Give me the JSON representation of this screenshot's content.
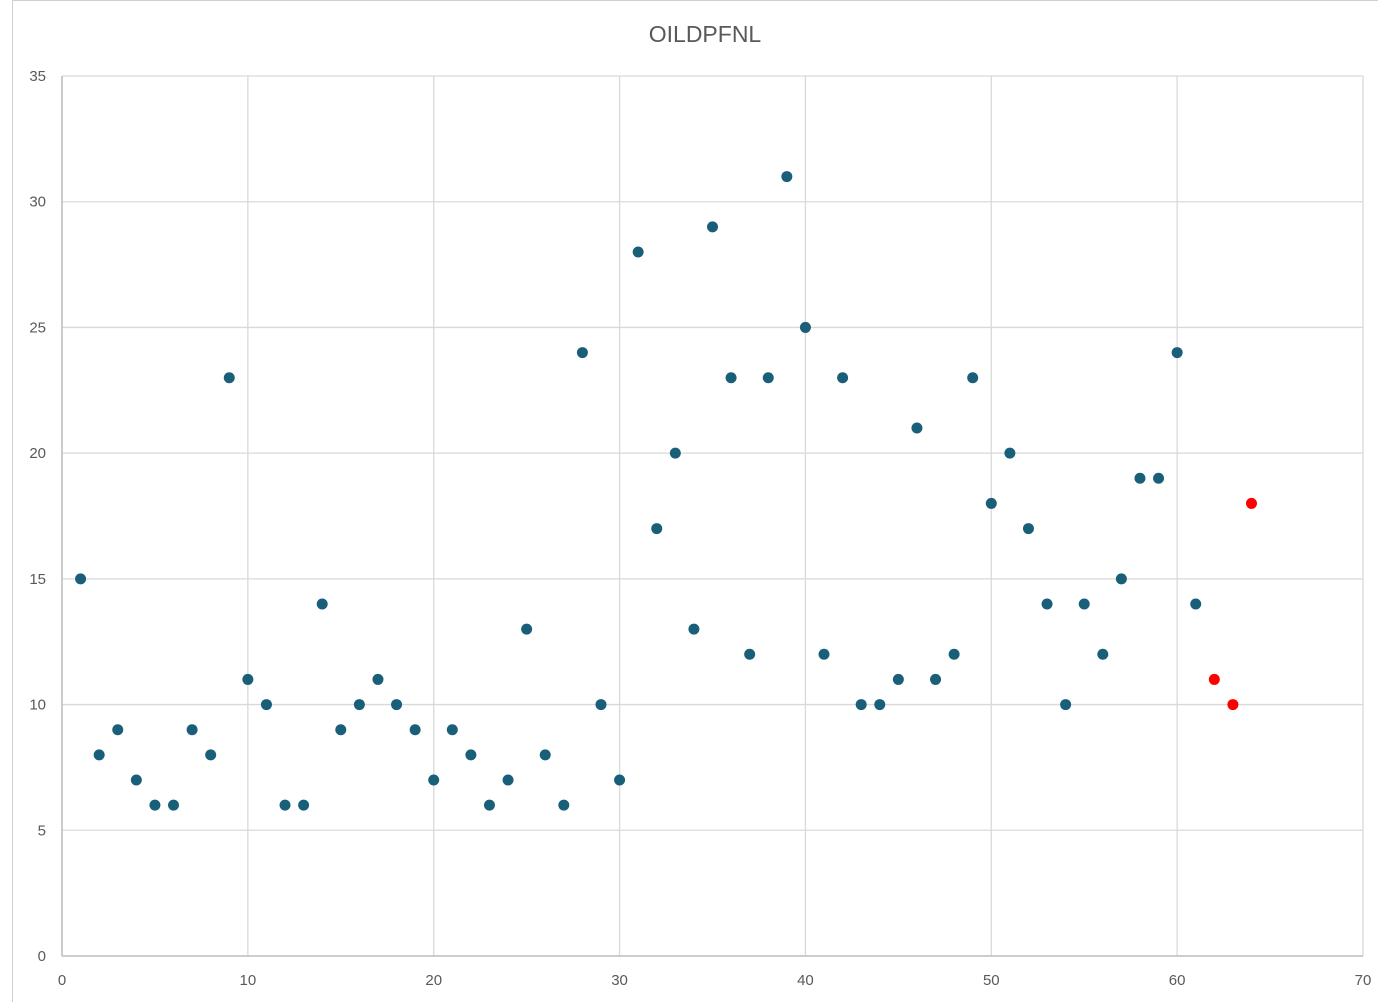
{
  "chart_data": {
    "type": "scatter",
    "title": "OILDPFNL",
    "xlabel": "",
    "ylabel": "",
    "xlim": [
      0,
      70
    ],
    "ylim": [
      0,
      35
    ],
    "x_ticks": [
      0,
      10,
      20,
      30,
      40,
      50,
      60,
      70
    ],
    "y_ticks": [
      0,
      5,
      10,
      15,
      20,
      25,
      30,
      35
    ],
    "grid": true,
    "legend": "none",
    "colors": {
      "primary": "#1a5f7a",
      "highlight": "#ff0000",
      "grid": "#d9d9d9",
      "text": "#595959"
    },
    "series": [
      {
        "color": "#1a5f7a",
        "points": [
          [
            1,
            15
          ],
          [
            2,
            8
          ],
          [
            3,
            9
          ],
          [
            4,
            7
          ],
          [
            5,
            6
          ],
          [
            6,
            6
          ],
          [
            7,
            9
          ],
          [
            8,
            8
          ],
          [
            9,
            23
          ],
          [
            10,
            11
          ],
          [
            11,
            10
          ],
          [
            12,
            6
          ],
          [
            13,
            6
          ],
          [
            14,
            14
          ],
          [
            15,
            9
          ],
          [
            16,
            10
          ],
          [
            17,
            11
          ],
          [
            18,
            10
          ],
          [
            19,
            9
          ],
          [
            20,
            7
          ],
          [
            21,
            9
          ],
          [
            22,
            8
          ],
          [
            23,
            6
          ],
          [
            24,
            7
          ],
          [
            25,
            13
          ],
          [
            26,
            8
          ],
          [
            27,
            6
          ],
          [
            28,
            24
          ],
          [
            29,
            10
          ],
          [
            30,
            7
          ],
          [
            31,
            28
          ],
          [
            32,
            17
          ],
          [
            33,
            20
          ],
          [
            34,
            13
          ],
          [
            35,
            29
          ],
          [
            36,
            23
          ],
          [
            37,
            12
          ],
          [
            38,
            23
          ],
          [
            39,
            31
          ],
          [
            40,
            25
          ],
          [
            41,
            12
          ],
          [
            42,
            23
          ],
          [
            43,
            10
          ],
          [
            44,
            10
          ],
          [
            45,
            11
          ],
          [
            46,
            21
          ],
          [
            47,
            11
          ],
          [
            48,
            12
          ],
          [
            49,
            23
          ],
          [
            50,
            18
          ],
          [
            51,
            20
          ],
          [
            52,
            17
          ],
          [
            53,
            14
          ],
          [
            54,
            10
          ],
          [
            55,
            14
          ],
          [
            56,
            12
          ],
          [
            57,
            15
          ],
          [
            58,
            19
          ],
          [
            59,
            19
          ],
          [
            60,
            24
          ],
          [
            61,
            14
          ]
        ]
      },
      {
        "color": "#ff0000",
        "points": [
          [
            62,
            11
          ],
          [
            63,
            10
          ],
          [
            64,
            18
          ]
        ]
      }
    ]
  }
}
